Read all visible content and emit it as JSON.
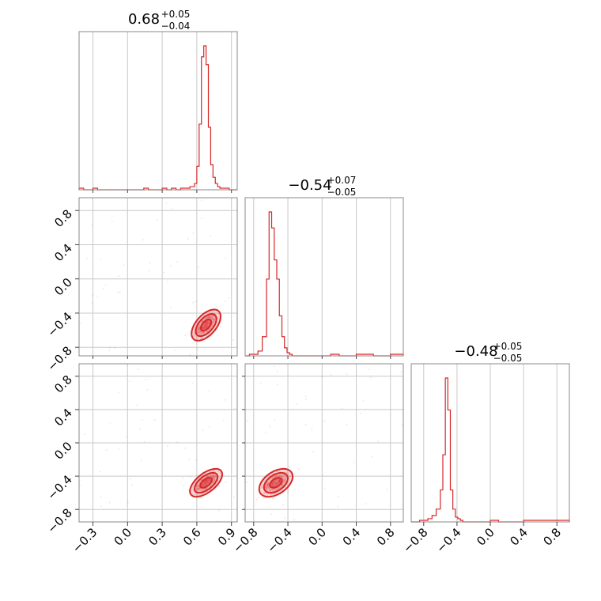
{
  "chart_data": {
    "type": "corner",
    "parameters": [
      {
        "index": 0,
        "title": {
          "median": "0.68",
          "plus": "+0.05",
          "minus": "−0.04"
        },
        "range": [
          -0.42,
          0.95
        ],
        "ticks": [
          -0.3,
          0.0,
          0.3,
          0.6,
          0.9
        ],
        "tick_labels": [
          "−0.3",
          "0.0",
          "0.3",
          "0.6",
          "0.9"
        ],
        "hist_bins": [
          -0.42,
          -0.38,
          -0.34,
          -0.3,
          -0.26,
          -0.22,
          -0.18,
          -0.14,
          -0.1,
          -0.06,
          -0.02,
          0.02,
          0.06,
          0.1,
          0.14,
          0.18,
          0.22,
          0.26,
          0.3,
          0.34,
          0.38,
          0.42,
          0.46,
          0.5,
          0.54,
          0.58,
          0.6,
          0.62,
          0.64,
          0.66,
          0.68,
          0.7,
          0.72,
          0.74,
          0.76,
          0.78,
          0.8,
          0.84,
          0.88,
          0.92,
          0.95
        ],
        "hist_counts": [
          1,
          0,
          0,
          1,
          0,
          0,
          0,
          0,
          0,
          0,
          0,
          0,
          0,
          0,
          1,
          0,
          0,
          0,
          1,
          0,
          1,
          0,
          1,
          1,
          2,
          4,
          15,
          42,
          85,
          92,
          80,
          40,
          16,
          8,
          4,
          2,
          1,
          1,
          0,
          0
        ]
      },
      {
        "index": 1,
        "title": {
          "median": "−0.54",
          "plus": "+0.07",
          "minus": "−0.05"
        },
        "range": [
          -0.9,
          0.95
        ],
        "ticks": [
          -0.8,
          -0.4,
          0.0,
          0.4,
          0.8
        ],
        "tick_labels": [
          "−0.8",
          "−0.4",
          "0.0",
          "0.4",
          "0.8"
        ],
        "hist_bins": [
          -0.9,
          -0.85,
          -0.8,
          -0.75,
          -0.7,
          -0.65,
          -0.62,
          -0.59,
          -0.56,
          -0.53,
          -0.5,
          -0.47,
          -0.44,
          -0.41,
          -0.38,
          -0.35,
          -0.3,
          -0.25,
          -0.2,
          -0.1,
          0.0,
          0.1,
          0.2,
          0.3,
          0.4,
          0.5,
          0.6,
          0.7,
          0.8,
          0.95
        ],
        "hist_counts": [
          0,
          1,
          1,
          3,
          12,
          48,
          90,
          80,
          60,
          48,
          25,
          12,
          5,
          2,
          1,
          0,
          0,
          0,
          0,
          0,
          0,
          1,
          0,
          0,
          1,
          1,
          0,
          0,
          1
        ]
      },
      {
        "index": 2,
        "title": {
          "median": "−0.48",
          "plus": "+0.05",
          "minus": "−0.05"
        },
        "range": [
          -0.95,
          0.95
        ],
        "ticks": [
          -0.8,
          -0.4,
          0.0,
          0.4,
          0.8
        ],
        "tick_labels": [
          "−0.8",
          "−0.4",
          "0.0",
          "0.4",
          "0.8"
        ],
        "hist_bins": [
          -0.95,
          -0.85,
          -0.8,
          -0.75,
          -0.7,
          -0.65,
          -0.6,
          -0.57,
          -0.54,
          -0.51,
          -0.48,
          -0.45,
          -0.42,
          -0.39,
          -0.36,
          -0.33,
          -0.3,
          -0.25,
          -0.2,
          -0.1,
          0.0,
          0.1,
          0.2,
          0.3,
          0.4,
          0.5,
          0.6,
          0.7,
          0.8,
          0.95
        ],
        "hist_counts": [
          0,
          1,
          1,
          2,
          4,
          8,
          20,
          42,
          90,
          70,
          20,
          8,
          3,
          2,
          1,
          0,
          0,
          0,
          0,
          0,
          1,
          0,
          0,
          0,
          1,
          1,
          1,
          1,
          1
        ]
      }
    ],
    "pairs": [
      {
        "x": 0,
        "y": 1,
        "center": [
          0.68,
          -0.54
        ],
        "sigma": [
          0.045,
          0.065
        ],
        "rho": 0.55
      },
      {
        "x": 0,
        "y": 2,
        "center": [
          0.68,
          -0.48
        ],
        "sigma": [
          0.05,
          0.06
        ],
        "rho": 0.6
      },
      {
        "x": 1,
        "y": 2,
        "center": [
          -0.54,
          -0.48
        ],
        "sigma": [
          0.07,
          0.06
        ],
        "rho": 0.45
      }
    ],
    "contour_levels": [
      1.0,
      2.0,
      2.8
    ],
    "colors": {
      "line": "#d62728",
      "points": "#e04848",
      "grid": "#c8c8c8",
      "frame": "#888888"
    },
    "grid": true
  }
}
